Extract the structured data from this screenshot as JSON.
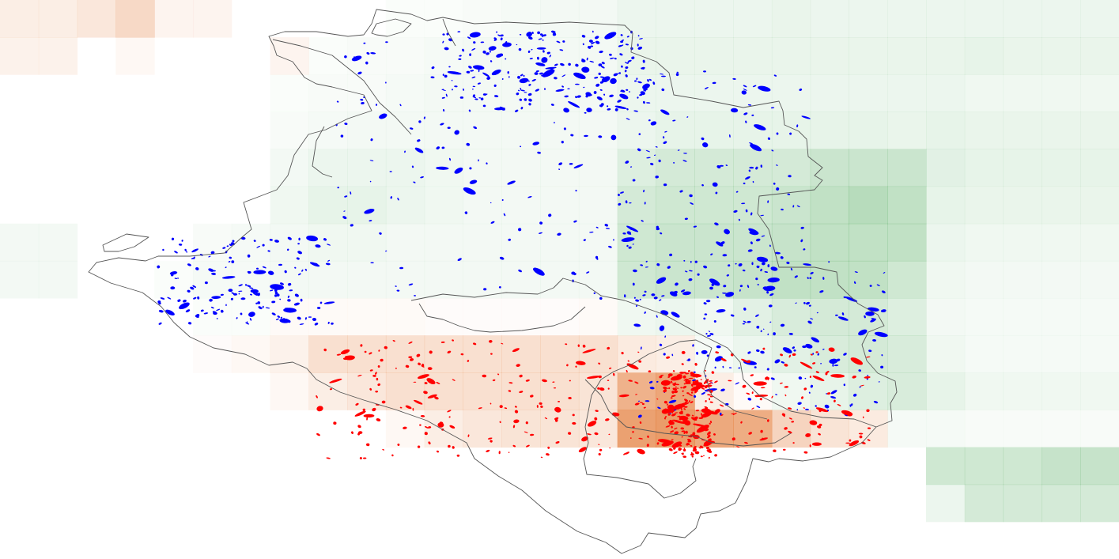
{
  "map": {
    "legend_colors": {
      "positive_grid": "#e06a1e",
      "negative_grid": "#2e9a3e",
      "positive_feature": "#ff0000",
      "negative_feature": "#0000ff",
      "boundary": "#555555"
    },
    "grid": {
      "cols": 29,
      "rows": 15,
      "cells": [
        [
          0,
          0,
          0.1
        ],
        [
          1,
          0,
          0.1
        ],
        [
          2,
          0,
          0.14
        ],
        [
          3,
          0,
          0.22
        ],
        [
          4,
          0,
          0.06
        ],
        [
          5,
          0,
          0.06
        ],
        [
          0,
          1,
          0.08
        ],
        [
          1,
          1,
          0.08
        ],
        [
          3,
          1,
          0.04
        ],
        [
          7,
          1,
          0.06
        ],
        [
          0,
          6,
          -0.05
        ],
        [
          1,
          6,
          -0.05
        ],
        [
          0,
          7,
          -0.05
        ],
        [
          1,
          7,
          -0.05
        ],
        [
          10,
          0,
          -0.02
        ],
        [
          11,
          0,
          -0.02
        ],
        [
          12,
          0,
          -0.03
        ],
        [
          13,
          0,
          -0.04
        ],
        [
          14,
          0,
          -0.05
        ],
        [
          15,
          0,
          -0.05
        ],
        [
          16,
          0,
          -0.08
        ],
        [
          17,
          0,
          -0.08
        ],
        [
          18,
          0,
          -0.08
        ],
        [
          19,
          0,
          -0.08
        ],
        [
          20,
          0,
          -0.09
        ],
        [
          21,
          0,
          -0.08
        ],
        [
          22,
          0,
          -0.08
        ],
        [
          23,
          0,
          -0.08
        ],
        [
          24,
          0,
          -0.08
        ],
        [
          25,
          0,
          -0.08
        ],
        [
          26,
          0,
          -0.08
        ],
        [
          27,
          0,
          -0.08
        ],
        [
          28,
          0,
          -0.08
        ],
        [
          8,
          1,
          -0.02
        ],
        [
          9,
          1,
          -0.03
        ],
        [
          10,
          1,
          -0.03
        ],
        [
          11,
          1,
          -0.04
        ],
        [
          12,
          1,
          -0.05
        ],
        [
          13,
          1,
          -0.05
        ],
        [
          14,
          1,
          -0.05
        ],
        [
          15,
          1,
          -0.05
        ],
        [
          16,
          1,
          -0.09
        ],
        [
          17,
          1,
          -0.09
        ],
        [
          18,
          1,
          -0.09
        ],
        [
          19,
          1,
          -0.09
        ],
        [
          20,
          1,
          -0.09
        ],
        [
          21,
          1,
          -0.09
        ],
        [
          22,
          1,
          -0.09
        ],
        [
          23,
          1,
          -0.09
        ],
        [
          24,
          1,
          -0.09
        ],
        [
          25,
          1,
          -0.1
        ],
        [
          26,
          1,
          -0.09
        ],
        [
          27,
          1,
          -0.09
        ],
        [
          28,
          1,
          -0.09
        ],
        [
          7,
          2,
          -0.02
        ],
        [
          8,
          2,
          -0.03
        ],
        [
          9,
          2,
          -0.03
        ],
        [
          10,
          2,
          -0.04
        ],
        [
          11,
          2,
          -0.05
        ],
        [
          12,
          2,
          -0.05
        ],
        [
          13,
          2,
          -0.05
        ],
        [
          14,
          2,
          -0.05
        ],
        [
          15,
          2,
          -0.05
        ],
        [
          16,
          2,
          -0.08
        ],
        [
          17,
          2,
          -0.08
        ],
        [
          18,
          2,
          -0.08
        ],
        [
          19,
          2,
          -0.08
        ],
        [
          20,
          2,
          -0.08
        ],
        [
          21,
          2,
          -0.08
        ],
        [
          22,
          2,
          -0.08
        ],
        [
          23,
          2,
          -0.08
        ],
        [
          24,
          2,
          -0.08
        ],
        [
          25,
          2,
          -0.06
        ],
        [
          26,
          2,
          -0.06
        ],
        [
          27,
          2,
          -0.06
        ],
        [
          28,
          2,
          -0.06
        ],
        [
          7,
          3,
          -0.03
        ],
        [
          8,
          3,
          -0.04
        ],
        [
          9,
          3,
          -0.05
        ],
        [
          10,
          3,
          -0.05
        ],
        [
          11,
          3,
          -0.05
        ],
        [
          12,
          3,
          -0.05
        ],
        [
          13,
          3,
          -0.05
        ],
        [
          14,
          3,
          -0.05
        ],
        [
          15,
          3,
          -0.05
        ],
        [
          16,
          3,
          -0.08
        ],
        [
          17,
          3,
          -0.1
        ],
        [
          18,
          3,
          -0.1
        ],
        [
          19,
          3,
          -0.1
        ],
        [
          20,
          3,
          -0.1
        ],
        [
          21,
          3,
          -0.1
        ],
        [
          22,
          3,
          -0.1
        ],
        [
          23,
          3,
          -0.09
        ],
        [
          24,
          3,
          -0.1
        ],
        [
          25,
          3,
          -0.09
        ],
        [
          26,
          3,
          -0.09
        ],
        [
          27,
          3,
          -0.09
        ],
        [
          28,
          3,
          -0.09
        ],
        [
          7,
          4,
          -0.05
        ],
        [
          8,
          4,
          -0.08
        ],
        [
          9,
          4,
          -0.08
        ],
        [
          10,
          4,
          -0.08
        ],
        [
          11,
          4,
          -0.06
        ],
        [
          12,
          4,
          -0.05
        ],
        [
          13,
          4,
          -0.05
        ],
        [
          14,
          4,
          -0.05
        ],
        [
          15,
          4,
          -0.05
        ],
        [
          16,
          4,
          -0.14
        ],
        [
          17,
          4,
          -0.18
        ],
        [
          18,
          4,
          -0.18
        ],
        [
          19,
          4,
          -0.18
        ],
        [
          20,
          4,
          -0.18
        ],
        [
          21,
          4,
          -0.22
        ],
        [
          22,
          4,
          -0.22
        ],
        [
          23,
          4,
          -0.22
        ],
        [
          24,
          4,
          -0.12
        ],
        [
          25,
          4,
          -0.1
        ],
        [
          26,
          4,
          -0.1
        ],
        [
          27,
          4,
          -0.1
        ],
        [
          28,
          4,
          -0.1
        ],
        [
          7,
          5,
          -0.06
        ],
        [
          8,
          5,
          -0.1
        ],
        [
          9,
          5,
          -0.1
        ],
        [
          10,
          5,
          -0.08
        ],
        [
          11,
          5,
          -0.06
        ],
        [
          12,
          5,
          -0.05
        ],
        [
          13,
          5,
          -0.05
        ],
        [
          14,
          5,
          -0.05
        ],
        [
          15,
          5,
          -0.05
        ],
        [
          16,
          5,
          -0.18
        ],
        [
          17,
          5,
          -0.2
        ],
        [
          18,
          5,
          -0.2
        ],
        [
          19,
          5,
          -0.2
        ],
        [
          20,
          5,
          -0.22
        ],
        [
          21,
          5,
          -0.26
        ],
        [
          22,
          5,
          -0.3
        ],
        [
          23,
          5,
          -0.26
        ],
        [
          24,
          5,
          -0.1
        ],
        [
          25,
          5,
          -0.09
        ],
        [
          26,
          5,
          -0.09
        ],
        [
          27,
          5,
          -0.09
        ],
        [
          28,
          5,
          -0.09
        ],
        [
          5,
          6,
          -0.03
        ],
        [
          6,
          6,
          -0.04
        ],
        [
          7,
          6,
          -0.05
        ],
        [
          8,
          6,
          -0.06
        ],
        [
          9,
          6,
          -0.06
        ],
        [
          10,
          6,
          -0.05
        ],
        [
          11,
          6,
          -0.05
        ],
        [
          12,
          6,
          -0.05
        ],
        [
          13,
          6,
          -0.05
        ],
        [
          14,
          6,
          -0.05
        ],
        [
          15,
          6,
          -0.05
        ],
        [
          16,
          6,
          -0.2
        ],
        [
          17,
          6,
          -0.22
        ],
        [
          18,
          6,
          -0.22
        ],
        [
          19,
          6,
          -0.22
        ],
        [
          20,
          6,
          -0.24
        ],
        [
          21,
          6,
          -0.26
        ],
        [
          22,
          6,
          -0.26
        ],
        [
          23,
          6,
          -0.26
        ],
        [
          24,
          6,
          -0.08
        ],
        [
          25,
          6,
          -0.06
        ],
        [
          26,
          6,
          -0.06
        ],
        [
          27,
          6,
          -0.06
        ],
        [
          28,
          6,
          -0.06
        ],
        [
          4,
          7,
          -0.02
        ],
        [
          5,
          7,
          -0.04
        ],
        [
          6,
          7,
          -0.04
        ],
        [
          7,
          7,
          -0.05
        ],
        [
          8,
          7,
          -0.05
        ],
        [
          9,
          7,
          -0.05
        ],
        [
          10,
          7,
          -0.05
        ],
        [
          11,
          7,
          -0.05
        ],
        [
          12,
          7,
          -0.05
        ],
        [
          13,
          7,
          -0.05
        ],
        [
          14,
          7,
          -0.05
        ],
        [
          15,
          7,
          -0.05
        ],
        [
          16,
          7,
          -0.2
        ],
        [
          17,
          7,
          -0.22
        ],
        [
          18,
          7,
          -0.22
        ],
        [
          19,
          7,
          -0.24
        ],
        [
          20,
          7,
          -0.26
        ],
        [
          21,
          7,
          -0.26
        ],
        [
          22,
          7,
          -0.26
        ],
        [
          23,
          7,
          -0.2
        ],
        [
          24,
          7,
          -0.06
        ],
        [
          25,
          7,
          -0.05
        ],
        [
          26,
          7,
          -0.05
        ],
        [
          27,
          7,
          -0.05
        ],
        [
          28,
          7,
          -0.05
        ],
        [
          5,
          8,
          -0.02
        ],
        [
          6,
          8,
          -0.02
        ],
        [
          7,
          8,
          0.03
        ],
        [
          8,
          8,
          0.03
        ],
        [
          9,
          8,
          0.03
        ],
        [
          10,
          8,
          0.03
        ],
        [
          11,
          8,
          0.02
        ],
        [
          12,
          8,
          0.02
        ],
        [
          13,
          8,
          0.02
        ],
        [
          14,
          8,
          0.02
        ],
        [
          15,
          8,
          0.03
        ],
        [
          16,
          8,
          -0.06
        ],
        [
          17,
          8,
          -0.08
        ],
        [
          18,
          8,
          -0.06
        ],
        [
          19,
          8,
          -0.12
        ],
        [
          20,
          8,
          -0.16
        ],
        [
          21,
          8,
          -0.18
        ],
        [
          22,
          8,
          -0.18
        ],
        [
          23,
          8,
          -0.14
        ],
        [
          24,
          8,
          -0.05
        ],
        [
          25,
          8,
          -0.04
        ],
        [
          26,
          8,
          -0.04
        ],
        [
          27,
          8,
          -0.04
        ],
        [
          28,
          8,
          -0.04
        ],
        [
          5,
          9,
          0.02
        ],
        [
          6,
          9,
          0.04
        ],
        [
          7,
          9,
          0.08
        ],
        [
          8,
          9,
          0.18
        ],
        [
          9,
          9,
          0.18
        ],
        [
          10,
          9,
          0.18
        ],
        [
          11,
          9,
          0.18
        ],
        [
          12,
          9,
          0.18
        ],
        [
          13,
          9,
          0.18
        ],
        [
          14,
          9,
          0.18
        ],
        [
          15,
          9,
          0.18
        ],
        [
          16,
          9,
          0.12
        ],
        [
          17,
          9,
          0.1
        ],
        [
          18,
          9,
          -0.04
        ],
        [
          19,
          9,
          -0.08
        ],
        [
          20,
          9,
          -0.12
        ],
        [
          21,
          9,
          -0.16
        ],
        [
          22,
          9,
          -0.18
        ],
        [
          23,
          9,
          -0.16
        ],
        [
          24,
          9,
          -0.06
        ],
        [
          25,
          9,
          -0.04
        ],
        [
          26,
          9,
          -0.04
        ],
        [
          27,
          9,
          -0.04
        ],
        [
          28,
          9,
          -0.04
        ],
        [
          7,
          10,
          0.04
        ],
        [
          8,
          10,
          0.1
        ],
        [
          9,
          10,
          0.14
        ],
        [
          10,
          10,
          0.18
        ],
        [
          11,
          10,
          0.18
        ],
        [
          12,
          10,
          0.18
        ],
        [
          13,
          10,
          0.18
        ],
        [
          14,
          10,
          0.18
        ],
        [
          15,
          10,
          0.16
        ],
        [
          16,
          10,
          0.45
        ],
        [
          17,
          10,
          0.52
        ],
        [
          18,
          10,
          0.1
        ],
        [
          19,
          10,
          0.03
        ],
        [
          20,
          10,
          -0.06
        ],
        [
          21,
          10,
          -0.1
        ],
        [
          22,
          10,
          -0.14
        ],
        [
          23,
          10,
          -0.16
        ],
        [
          24,
          10,
          -0.1
        ],
        [
          25,
          10,
          -0.06
        ],
        [
          26,
          10,
          -0.06
        ],
        [
          27,
          10,
          -0.06
        ],
        [
          28,
          10,
          -0.06
        ],
        [
          10,
          11,
          0.04
        ],
        [
          11,
          11,
          0.1
        ],
        [
          12,
          11,
          0.14
        ],
        [
          13,
          11,
          0.16
        ],
        [
          14,
          11,
          0.16
        ],
        [
          15,
          11,
          0.14
        ],
        [
          16,
          11,
          0.55
        ],
        [
          17,
          11,
          0.58
        ],
        [
          18,
          11,
          0.5
        ],
        [
          19,
          11,
          0.48
        ],
        [
          20,
          11,
          0.25
        ],
        [
          21,
          11,
          0.16
        ],
        [
          22,
          11,
          0.12
        ],
        [
          23,
          11,
          -0.04
        ],
        [
          24,
          11,
          -0.04
        ],
        [
          25,
          11,
          -0.03
        ],
        [
          26,
          11,
          -0.03
        ],
        [
          27,
          11,
          -0.03
        ],
        [
          28,
          11,
          -0.03
        ],
        [
          24,
          12,
          -0.2
        ],
        [
          25,
          12,
          -0.2
        ],
        [
          26,
          12,
          -0.2
        ],
        [
          27,
          12,
          -0.24
        ],
        [
          28,
          12,
          -0.24
        ],
        [
          24,
          13,
          -0.08
        ],
        [
          25,
          13,
          -0.18
        ],
        [
          26,
          13,
          -0.18
        ],
        [
          27,
          13,
          -0.18
        ],
        [
          28,
          13,
          -0.18
        ]
      ]
    }
  }
}
